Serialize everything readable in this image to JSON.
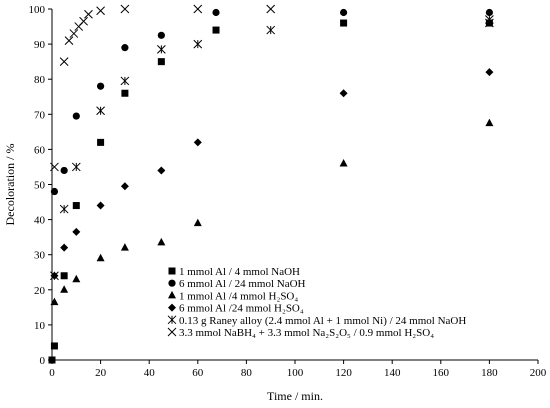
{
  "chart_data": {
    "type": "scatter",
    "title": "",
    "xlabel": "Time / min.",
    "ylabel": "Decoloration / %",
    "xlim": [
      0,
      200
    ],
    "ylim": [
      0,
      100
    ],
    "xticks": [
      "0",
      "20",
      "40",
      "60",
      "80",
      "100",
      "120",
      "140",
      "160",
      "180",
      "200"
    ],
    "yticks": [
      "0",
      "10",
      "20",
      "30",
      "40",
      "50",
      "60",
      "70",
      "80",
      "90",
      "100"
    ],
    "grid": false,
    "legend_position": "bottom-center",
    "series": [
      {
        "name": "1 mmol Al / 4 mmol NaOH",
        "marker": "square",
        "x": [
          0,
          1,
          5,
          10,
          20,
          30,
          45,
          67.5,
          120,
          180
        ],
        "y": [
          0,
          4,
          24,
          44,
          62,
          76,
          85,
          94,
          96,
          96
        ]
      },
      {
        "name": "6 mmol Al / 24 mmol NaOH",
        "marker": "circle",
        "x": [
          1,
          5,
          10,
          20,
          30,
          45,
          67.5,
          120,
          180
        ],
        "y": [
          48,
          54,
          69.5,
          78,
          89,
          92.5,
          99,
          99,
          99
        ]
      },
      {
        "name": "1 mmol Al /4 mmol H₂SO₄",
        "marker": "triangle",
        "x": [
          1,
          5,
          10,
          20,
          30,
          45,
          60,
          120,
          180
        ],
        "y": [
          16.5,
          20,
          23,
          29,
          32,
          33.5,
          39,
          56,
          67.5
        ]
      },
      {
        "name": "6 mmol Al /24 mmol H₂SO₄",
        "marker": "diamond",
        "x": [
          1,
          5,
          10,
          20,
          30,
          45,
          60,
          120,
          180
        ],
        "y": [
          24,
          32,
          36.5,
          44,
          49.5,
          54,
          62,
          76,
          82
        ]
      },
      {
        "name": "0.13 g Raney alloy (2.4 mmol Al + 1 mmol Ni) / 24 mmol NaOH",
        "marker": "star",
        "x": [
          1,
          5,
          10,
          20,
          30,
          45,
          60,
          90,
          180
        ],
        "y": [
          24,
          43,
          55,
          71,
          79.5,
          88.5,
          90,
          94,
          97
        ]
      },
      {
        "name": "3.3 mmol NaBH₄ + 3.3 mmol Na₂S₂O₅ / 0.9 mmol H₂SO₄",
        "marker": "x",
        "x": [
          1,
          5,
          7,
          9,
          11,
          13,
          15,
          20,
          30,
          60,
          90,
          180
        ],
        "y": [
          55,
          85,
          91,
          93,
          95,
          96.5,
          98.5,
          99.5,
          100,
          100,
          100,
          96
        ]
      }
    ]
  }
}
